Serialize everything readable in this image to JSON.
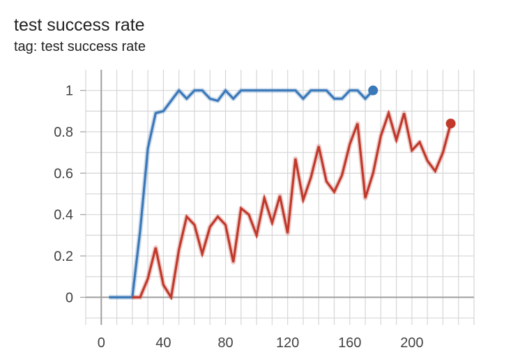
{
  "header": {
    "title": "test success rate",
    "subtitle": "tag: test success rate"
  },
  "chart_data": {
    "type": "line",
    "title": "test success rate",
    "subtitle": "tag: test success rate",
    "xlabel": "",
    "ylabel": "",
    "xlim": [
      -10,
      240
    ],
    "ylim": [
      -0.12,
      1.1
    ],
    "x_ticks": [
      0,
      40,
      80,
      120,
      160,
      200
    ],
    "y_ticks": [
      0,
      0.2,
      0.4,
      0.6,
      0.8,
      1
    ],
    "x_tick_labels": [
      "0",
      "40",
      "80",
      "120",
      "160",
      "200"
    ],
    "y_tick_labels": [
      "0",
      "0.2",
      "0.4",
      "0.6",
      "0.8",
      "1"
    ],
    "grid": true,
    "legend": "none",
    "series": [
      {
        "color": "#3b78b8",
        "x": [
          5,
          10,
          15,
          20,
          25,
          30,
          35,
          40,
          45,
          50,
          55,
          60,
          65,
          70,
          75,
          80,
          85,
          90,
          95,
          100,
          105,
          110,
          115,
          120,
          125,
          130,
          135,
          140,
          145,
          150,
          155,
          160,
          165,
          170,
          175
        ],
        "y": [
          0,
          0,
          0,
          0,
          0.32,
          0.72,
          0.89,
          0.9,
          0.95,
          1.0,
          0.96,
          1.0,
          1.0,
          0.96,
          0.95,
          1.0,
          0.96,
          1.0,
          1.0,
          1.0,
          1.0,
          1.0,
          1.0,
          1.0,
          1.0,
          0.96,
          1.0,
          1.0,
          1.0,
          0.96,
          0.96,
          1.0,
          1.0,
          0.96,
          1.0
        ]
      },
      {
        "color": "#c0392b",
        "x": [
          20,
          25,
          30,
          35,
          40,
          45,
          50,
          55,
          60,
          65,
          70,
          75,
          80,
          85,
          90,
          95,
          100,
          105,
          110,
          115,
          120,
          125,
          130,
          135,
          140,
          145,
          150,
          155,
          160,
          165,
          170,
          175,
          180,
          185,
          190,
          195,
          200,
          205,
          210,
          215,
          220,
          225
        ],
        "y": [
          0,
          0,
          0.09,
          0.24,
          0.06,
          0.0,
          0.23,
          0.39,
          0.35,
          0.21,
          0.34,
          0.39,
          0.35,
          0.17,
          0.43,
          0.4,
          0.3,
          0.48,
          0.36,
          0.49,
          0.31,
          0.67,
          0.47,
          0.58,
          0.73,
          0.56,
          0.51,
          0.59,
          0.74,
          0.84,
          0.48,
          0.6,
          0.78,
          0.89,
          0.76,
          0.89,
          0.71,
          0.75,
          0.66,
          0.61,
          0.7,
          0.84
        ]
      }
    ]
  }
}
